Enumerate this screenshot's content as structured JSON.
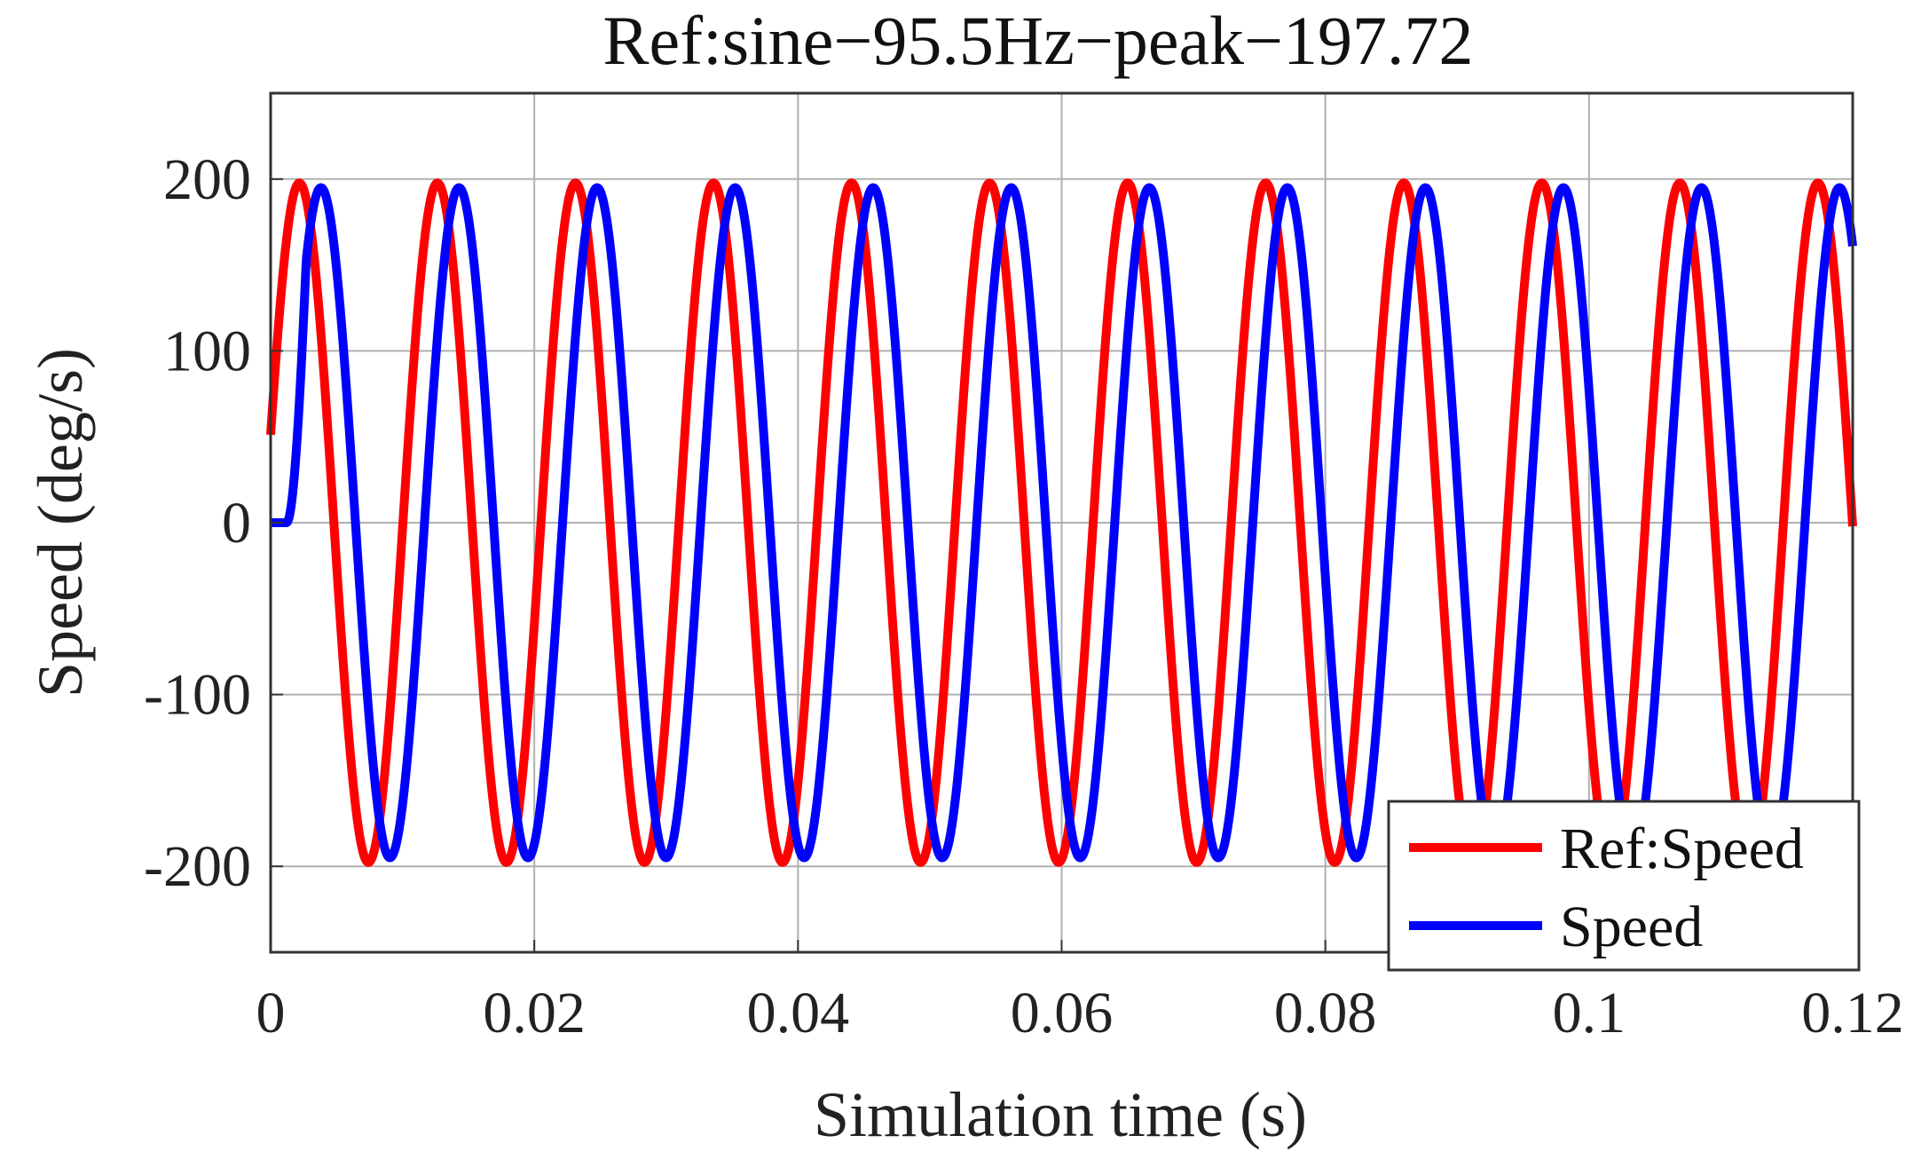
{
  "chart_data": {
    "type": "line",
    "title": "Ref:sine−95.5Hz−peak−197.72",
    "xlabel": "Simulation time (s)",
    "ylabel": "Speed (deg/s)",
    "xlim": [
      0,
      0.12
    ],
    "ylim": [
      -250,
      250
    ],
    "xticks": [
      0,
      0.02,
      0.04,
      0.06,
      0.08,
      0.1,
      0.12
    ],
    "xtick_labels": [
      "0",
      "0.02",
      "0.04",
      "0.06",
      "0.08",
      "0.1",
      "0.12"
    ],
    "yticks": [
      200,
      100,
      0,
      -100,
      -200
    ],
    "ytick_labels": [
      "200",
      "100",
      "0",
      "-100",
      "-200"
    ],
    "grid": true,
    "legend_position": "bottom-right",
    "series": [
      {
        "name": "Ref:Speed",
        "color": "#ff0000",
        "function": "sine",
        "frequency_hz": 95.5,
        "amplitude": 197.72,
        "phase_deg": 15,
        "t_start": 0,
        "t_end": 0.12
      },
      {
        "name": "Speed",
        "color": "#0000ff",
        "function": "sine",
        "frequency_hz": 95.5,
        "amplitude": 195,
        "delay_s": 0.0012,
        "t_start": 0,
        "t_end": 0.12
      }
    ]
  }
}
